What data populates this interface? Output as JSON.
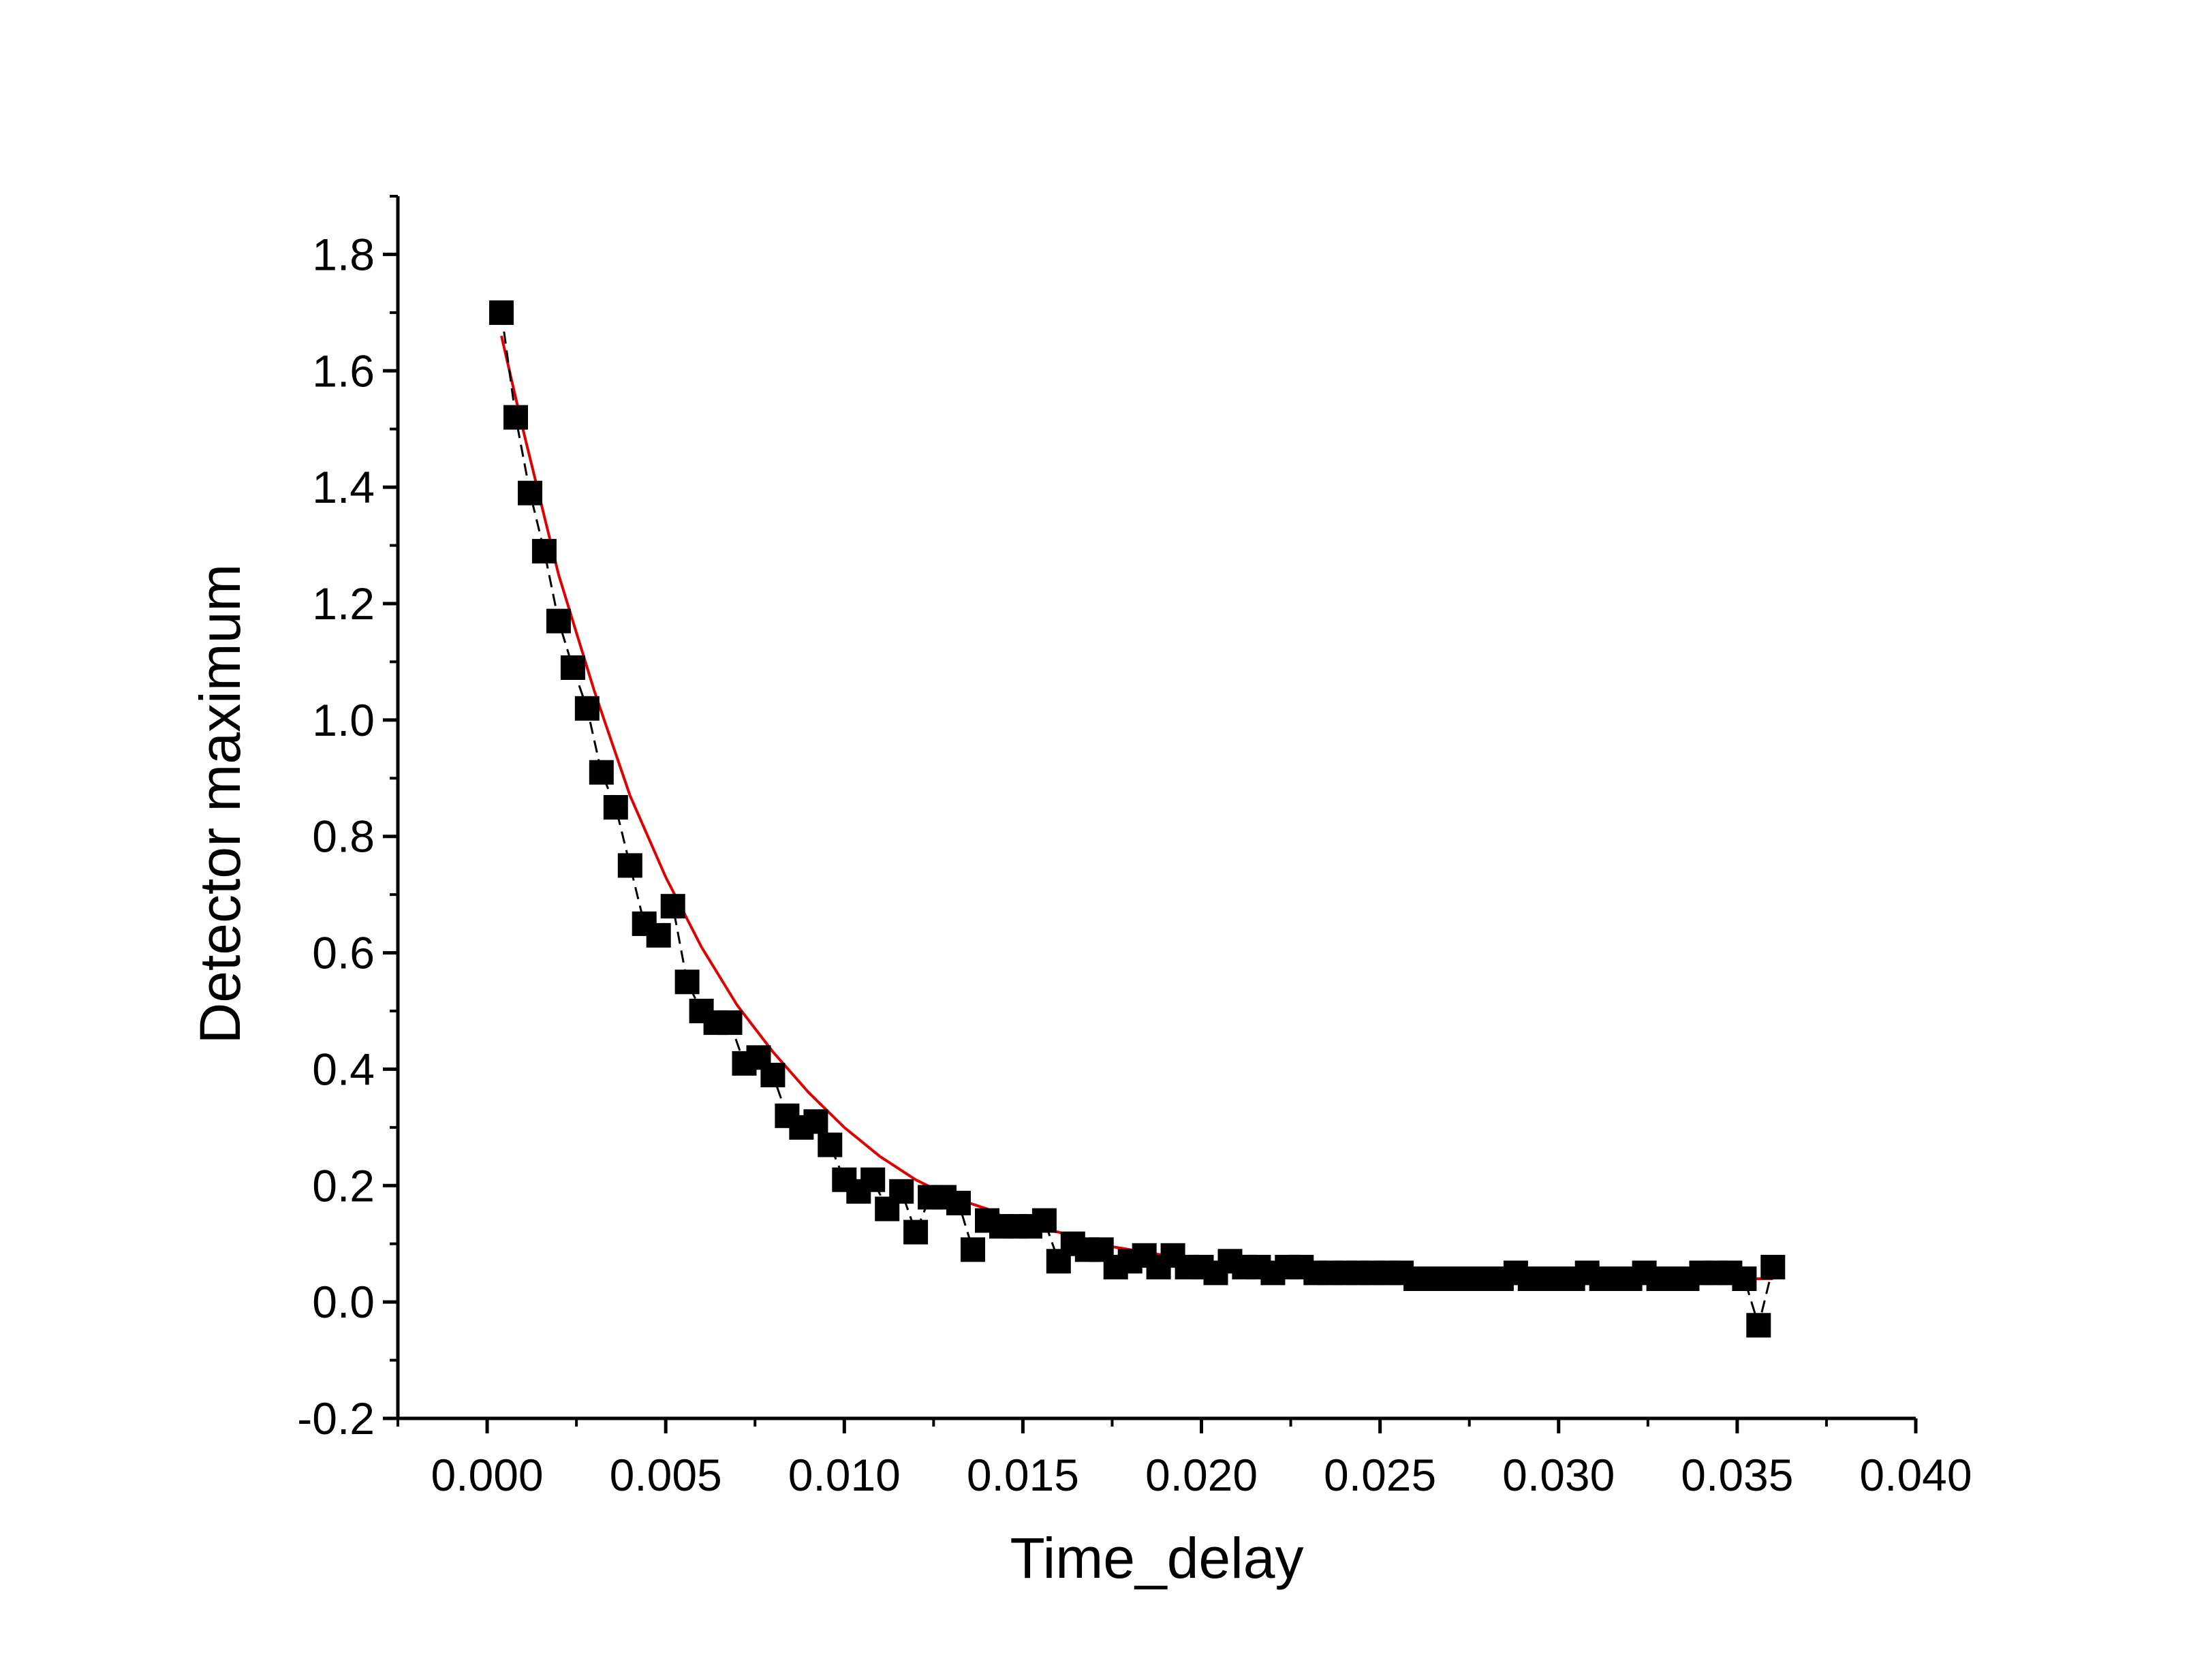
{
  "chart_data": {
    "type": "scatter",
    "xlabel": "Time_delay",
    "ylabel": "Detector maximum",
    "xlim": [
      -0.0025,
      0.04
    ],
    "ylim": [
      -0.2,
      1.9
    ],
    "x_ticks": [
      "0.000",
      "0.005",
      "0.010",
      "0.015",
      "0.020",
      "0.025",
      "0.030",
      "0.035",
      "0.040"
    ],
    "y_ticks": [
      "-0.2",
      "0.0",
      "0.2",
      "0.4",
      "0.6",
      "0.8",
      "1.0",
      "1.2",
      "1.4",
      "1.6",
      "1.8"
    ],
    "grid": false,
    "legend": false,
    "series": [
      {
        "kind": "scatter-with-dashed-line",
        "color": "#000000",
        "marker": "square",
        "x": [
          0.0004,
          0.0008,
          0.0012,
          0.0016,
          0.002,
          0.0024,
          0.0028,
          0.0032,
          0.0036,
          0.004,
          0.0044,
          0.0048,
          0.0052,
          0.0056,
          0.006,
          0.0064,
          0.0068,
          0.0072,
          0.0076,
          0.008,
          0.0084,
          0.0088,
          0.0092,
          0.0096,
          0.01,
          0.0104,
          0.0108,
          0.0112,
          0.0116,
          0.012,
          0.0124,
          0.0128,
          0.0132,
          0.0136,
          0.014,
          0.0144,
          0.0148,
          0.0152,
          0.0156,
          0.016,
          0.0164,
          0.0168,
          0.0172,
          0.0176,
          0.018,
          0.0184,
          0.0188,
          0.0192,
          0.0196,
          0.02,
          0.0204,
          0.0208,
          0.0212,
          0.0216,
          0.022,
          0.0224,
          0.0228,
          0.0232,
          0.0236,
          0.024,
          0.0244,
          0.0248,
          0.0252,
          0.0256,
          0.026,
          0.0264,
          0.0268,
          0.0272,
          0.0276,
          0.028,
          0.0284,
          0.0288,
          0.0292,
          0.0296,
          0.03,
          0.0304,
          0.0308,
          0.0312,
          0.0316,
          0.032,
          0.0324,
          0.0328,
          0.0332,
          0.0336,
          0.034,
          0.0344,
          0.0348,
          0.0352,
          0.0356,
          0.036
        ],
        "y": [
          1.7,
          1.52,
          1.39,
          1.29,
          1.17,
          1.09,
          1.02,
          0.91,
          0.85,
          0.75,
          0.65,
          0.63,
          0.68,
          0.55,
          0.5,
          0.48,
          0.48,
          0.41,
          0.42,
          0.39,
          0.32,
          0.3,
          0.31,
          0.27,
          0.21,
          0.19,
          0.21,
          0.16,
          0.19,
          0.12,
          0.18,
          0.18,
          0.17,
          0.09,
          0.14,
          0.13,
          0.13,
          0.13,
          0.14,
          0.07,
          0.1,
          0.09,
          0.09,
          0.06,
          0.07,
          0.08,
          0.06,
          0.08,
          0.06,
          0.06,
          0.05,
          0.07,
          0.06,
          0.06,
          0.05,
          0.06,
          0.06,
          0.05,
          0.05,
          0.05,
          0.05,
          0.05,
          0.05,
          0.05,
          0.04,
          0.04,
          0.04,
          0.04,
          0.04,
          0.04,
          0.04,
          0.05,
          0.04,
          0.04,
          0.04,
          0.04,
          0.05,
          0.04,
          0.04,
          0.04,
          0.05,
          0.04,
          0.04,
          0.04,
          0.05,
          0.05,
          0.05,
          0.04,
          -0.04,
          0.06
        ]
      },
      {
        "kind": "fit-line",
        "color": "#e00000",
        "x": [
          0.0004,
          0.001,
          0.002,
          0.003,
          0.004,
          0.005,
          0.006,
          0.007,
          0.008,
          0.009,
          0.01,
          0.011,
          0.012,
          0.013,
          0.014,
          0.015,
          0.016,
          0.017,
          0.018,
          0.019,
          0.02,
          0.022,
          0.024,
          0.026,
          0.028,
          0.03,
          0.032,
          0.034,
          0.036
        ],
        "y": [
          1.66,
          1.5,
          1.25,
          1.05,
          0.87,
          0.73,
          0.61,
          0.51,
          0.43,
          0.36,
          0.3,
          0.25,
          0.21,
          0.18,
          0.16,
          0.13,
          0.12,
          0.1,
          0.09,
          0.08,
          0.07,
          0.06,
          0.05,
          0.05,
          0.04,
          0.04,
          0.04,
          0.04,
          0.04
        ]
      }
    ]
  }
}
